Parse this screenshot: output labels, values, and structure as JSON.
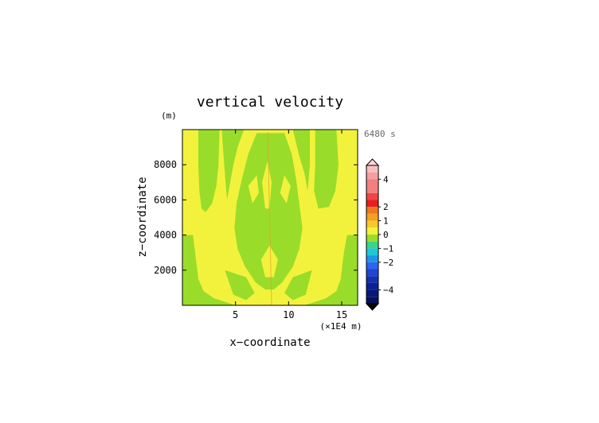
{
  "chart_data": {
    "type": "heatmap",
    "title": "vertical velocity",
    "xlabel": "x−coordinate",
    "ylabel": "z−coordinate",
    "x_unit": "(×1E4 m)",
    "y_unit": "(m)",
    "time_label": "6480 s",
    "xlim": [
      0,
      16.5
    ],
    "ylim": [
      0,
      10000
    ],
    "x_ticks": [
      5,
      10,
      15
    ],
    "y_ticks": [
      2000,
      4000,
      6000,
      8000
    ],
    "background_value": 0.2,
    "regions": [
      {
        "value": -0.3,
        "polygon": [
          [
            0,
            0
          ],
          [
            0,
            4000
          ],
          [
            1,
            4000
          ],
          [
            1.2,
            3000
          ],
          [
            1.5,
            1500
          ],
          [
            2,
            800
          ],
          [
            3,
            400
          ],
          [
            4,
            200
          ],
          [
            5,
            0
          ]
        ]
      },
      {
        "value": -0.3,
        "polygon": [
          [
            16.5,
            0
          ],
          [
            16.5,
            4000
          ],
          [
            15.5,
            4000
          ],
          [
            15.2,
            3000
          ],
          [
            14.9,
            1500
          ],
          [
            14.5,
            800
          ],
          [
            13.5,
            400
          ],
          [
            12.5,
            200
          ],
          [
            11.5,
            0
          ]
        ]
      },
      {
        "value": -0.3,
        "polygon": [
          [
            1.5,
            10000
          ],
          [
            3.5,
            10000
          ],
          [
            3.4,
            8000
          ],
          [
            3.2,
            6800
          ],
          [
            2.8,
            5800
          ],
          [
            2.2,
            5300
          ],
          [
            1.8,
            5500
          ],
          [
            1.6,
            6500
          ],
          [
            1.5,
            8000
          ]
        ]
      },
      {
        "value": -0.3,
        "polygon": [
          [
            12.5,
            10000
          ],
          [
            14.5,
            10000
          ],
          [
            14.7,
            8000
          ],
          [
            14.4,
            6500
          ],
          [
            13.8,
            5600
          ],
          [
            12.8,
            5500
          ],
          [
            12.4,
            6500
          ],
          [
            12.5,
            8000
          ]
        ]
      },
      {
        "value": -0.3,
        "polygon": [
          [
            3.7,
            10000
          ],
          [
            5.8,
            10000
          ],
          [
            5.2,
            9000
          ],
          [
            4.8,
            8000
          ],
          [
            4.5,
            7000
          ],
          [
            4.2,
            6000
          ],
          [
            4.0,
            7500
          ]
        ]
      },
      {
        "value": -0.3,
        "polygon": [
          [
            10.4,
            10000
          ],
          [
            12.0,
            10000
          ],
          [
            12.0,
            8000
          ],
          [
            11.8,
            6500
          ],
          [
            11.5,
            7500
          ],
          [
            11.0,
            8500
          ]
        ]
      },
      {
        "value": -0.3,
        "polygon": [
          [
            7.0,
            9800
          ],
          [
            9.6,
            9800
          ],
          [
            10.3,
            8600
          ],
          [
            10.7,
            7200
          ],
          [
            11.0,
            5800
          ],
          [
            11.3,
            4400
          ],
          [
            11.0,
            3200
          ],
          [
            10.4,
            2200
          ],
          [
            9.4,
            1300
          ],
          [
            8.6,
            900
          ],
          [
            7.8,
            900
          ],
          [
            6.9,
            1300
          ],
          [
            5.9,
            2200
          ],
          [
            5.2,
            3200
          ],
          [
            4.9,
            4400
          ],
          [
            5.1,
            5800
          ],
          [
            5.6,
            7200
          ],
          [
            6.2,
            8600
          ]
        ]
      },
      {
        "value": -0.3,
        "polygon": [
          [
            4.0,
            2000
          ],
          [
            6.0,
            1600
          ],
          [
            6.8,
            700
          ],
          [
            6.0,
            300
          ],
          [
            4.8,
            600
          ]
        ]
      },
      {
        "value": -0.3,
        "polygon": [
          [
            12.2,
            2000
          ],
          [
            10.4,
            1600
          ],
          [
            9.6,
            700
          ],
          [
            10.4,
            300
          ],
          [
            11.6,
            600
          ]
        ]
      },
      {
        "value": 0.2,
        "polygon": [
          [
            7.5,
            7000
          ],
          [
            8.0,
            8200
          ],
          [
            8.4,
            7000
          ],
          [
            8.2,
            5500
          ],
          [
            7.8,
            5500
          ]
        ]
      },
      {
        "value": 0.2,
        "polygon": [
          [
            6.2,
            6800
          ],
          [
            7.0,
            7400
          ],
          [
            7.2,
            6400
          ],
          [
            6.6,
            5800
          ]
        ]
      },
      {
        "value": 0.2,
        "polygon": [
          [
            9.2,
            6400
          ],
          [
            9.6,
            7400
          ],
          [
            10.2,
            6800
          ],
          [
            9.8,
            5800
          ]
        ]
      },
      {
        "value": 0.2,
        "polygon": [
          [
            7.4,
            2600
          ],
          [
            8.2,
            3400
          ],
          [
            9.0,
            2600
          ],
          [
            8.6,
            1600
          ],
          [
            7.8,
            1600
          ]
        ]
      }
    ],
    "colorbar": {
      "labels": [
        "4",
        "2",
        "1",
        "0",
        "−1",
        "−2",
        "−4"
      ],
      "label_values": [
        4,
        2,
        1,
        0,
        -1,
        -2,
        -4
      ],
      "levels": [
        {
          "lo": 4.5,
          "hi": 5,
          "color": "#f7c0c0"
        },
        {
          "lo": 4,
          "hi": 4.5,
          "color": "#f4a0a0"
        },
        {
          "lo": 3,
          "hi": 4,
          "color": "#f28080"
        },
        {
          "lo": 2.5,
          "hi": 3,
          "color": "#f04545"
        },
        {
          "lo": 2,
          "hi": 2.5,
          "color": "#e81e1e"
        },
        {
          "lo": 1.5,
          "hi": 2,
          "color": "#f07820"
        },
        {
          "lo": 1,
          "hi": 1.5,
          "color": "#f5a020"
        },
        {
          "lo": 0.5,
          "hi": 1,
          "color": "#f8c828"
        },
        {
          "lo": 0,
          "hi": 0.5,
          "color": "#f2f23c"
        },
        {
          "lo": -0.5,
          "hi": 0,
          "color": "#9adc2a"
        },
        {
          "lo": -1,
          "hi": -0.5,
          "color": "#3cd48a"
        },
        {
          "lo": -1.5,
          "hi": -1,
          "color": "#1ec8d8"
        },
        {
          "lo": -2,
          "hi": -1.5,
          "color": "#1e96e6"
        },
        {
          "lo": -2.5,
          "hi": -2,
          "color": "#2d64f0"
        },
        {
          "lo": -3,
          "hi": -2.5,
          "color": "#1e46d2"
        },
        {
          "lo": -3.5,
          "hi": -3,
          "color": "#1430b0"
        },
        {
          "lo": -4,
          "hi": -3.5,
          "color": "#0c2096"
        },
        {
          "lo": -4.5,
          "hi": -4,
          "color": "#081a78"
        },
        {
          "lo": -5,
          "hi": -4.5,
          "color": "#051258"
        }
      ],
      "over_color": "#ffd8d8",
      "under_color": "#000000"
    }
  }
}
